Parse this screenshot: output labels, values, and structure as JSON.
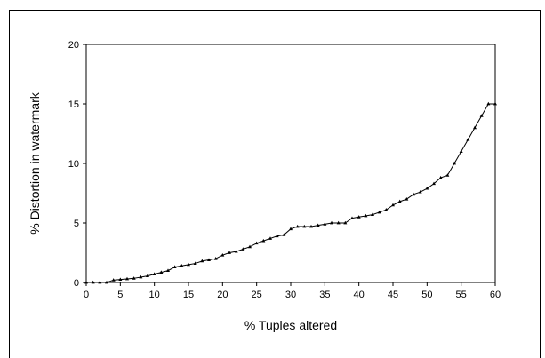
{
  "chart_data": {
    "type": "line",
    "title": "",
    "xlabel": "% Tuples altered",
    "ylabel": "% Distortion in watermark",
    "xlim": [
      0,
      60
    ],
    "ylim": [
      0,
      20
    ],
    "xticks": [
      0,
      5,
      10,
      15,
      20,
      25,
      30,
      35,
      40,
      45,
      50,
      55,
      60
    ],
    "yticks": [
      0,
      5,
      10,
      15,
      20
    ],
    "grid": false,
    "marker": "triangle",
    "series": [
      {
        "x": [
          0,
          1,
          2,
          3,
          4,
          5,
          6,
          7,
          8,
          9,
          10,
          11,
          12,
          13,
          14,
          15,
          16,
          17,
          18,
          19,
          20,
          21,
          22,
          23,
          24,
          25,
          26,
          27,
          28,
          29,
          30,
          31,
          32,
          33,
          34,
          35,
          36,
          37,
          38,
          39,
          40,
          41,
          42,
          43,
          44,
          45,
          46,
          47,
          48,
          49,
          50,
          51,
          52,
          53,
          54,
          55,
          56,
          57,
          58,
          59,
          60
        ],
        "values": [
          0,
          0,
          0,
          0,
          0.2,
          0.25,
          0.3,
          0.35,
          0.45,
          0.55,
          0.7,
          0.85,
          1.0,
          1.3,
          1.4,
          1.5,
          1.6,
          1.8,
          1.9,
          2.0,
          2.3,
          2.5,
          2.6,
          2.8,
          3.0,
          3.3,
          3.5,
          3.7,
          3.9,
          4.0,
          4.5,
          4.7,
          4.7,
          4.7,
          4.8,
          4.9,
          5.0,
          5.0,
          5.0,
          5.4,
          5.5,
          5.6,
          5.7,
          5.9,
          6.1,
          6.5,
          6.8,
          7.0,
          7.4,
          7.6,
          7.9,
          8.3,
          8.8,
          9.0,
          10.0,
          11.0,
          12.0,
          13.0,
          14.0,
          15.0,
          15.0
        ]
      }
    ]
  }
}
